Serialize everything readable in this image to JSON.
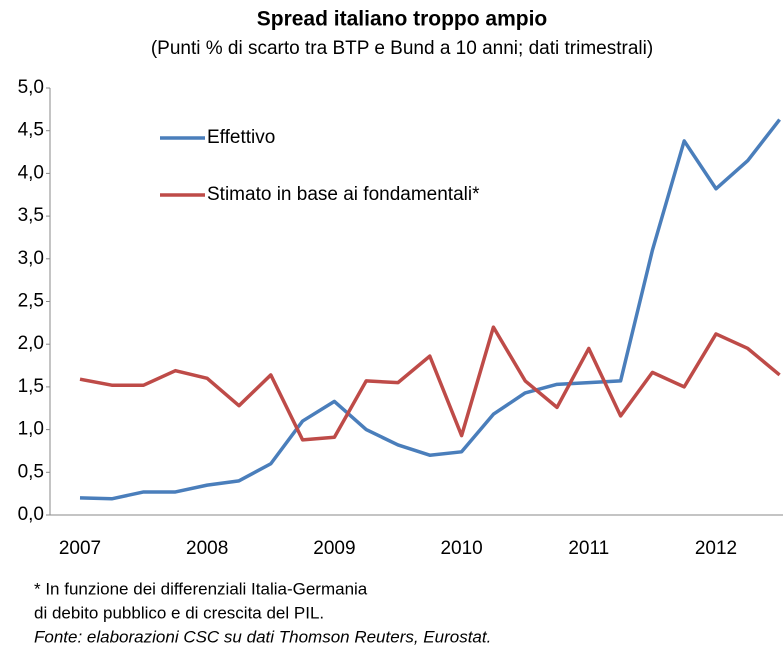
{
  "chart_data": {
    "type": "line",
    "title": "Spread italiano troppo ampio",
    "subtitle": "(Punti % di scarto tra BTP e Bund a 10 anni; dati trimestrali)",
    "categories": [
      "2007",
      null,
      null,
      null,
      "2008",
      null,
      null,
      null,
      "2009",
      null,
      null,
      null,
      "2010",
      null,
      null,
      null,
      "2011",
      null,
      null,
      null,
      "2012",
      null,
      null
    ],
    "series": [
      {
        "name": "Effettivo",
        "color": "#4a7ebb",
        "values": [
          0.2,
          0.19,
          0.27,
          0.27,
          0.35,
          0.4,
          0.6,
          1.1,
          1.33,
          1.0,
          0.82,
          0.7,
          0.74,
          1.18,
          1.43,
          1.53,
          1.55,
          1.57,
          3.1,
          4.38,
          3.82,
          4.15,
          4.63
        ]
      },
      {
        "name": "Stimato in base ai fondamentali*",
        "color": "#be4b48",
        "values": [
          1.59,
          1.52,
          1.52,
          1.69,
          1.6,
          1.28,
          1.64,
          0.88,
          0.91,
          1.57,
          1.55,
          1.86,
          0.93,
          2.2,
          1.57,
          1.26,
          1.95,
          1.16,
          1.67,
          1.5,
          2.12,
          1.95,
          1.64
        ]
      }
    ],
    "ylim": [
      0,
      5
    ],
    "yticks": [
      {
        "value": 0,
        "label": "0,0"
      },
      {
        "value": 0.5,
        "label": "0,5"
      },
      {
        "value": 1,
        "label": "1,0"
      },
      {
        "value": 1.5,
        "label": "1,5"
      },
      {
        "value": 2,
        "label": "2,0"
      },
      {
        "value": 2.5,
        "label": "2,5"
      },
      {
        "value": 3,
        "label": "3,0"
      },
      {
        "value": 3.5,
        "label": "3,5"
      },
      {
        "value": 4,
        "label": "4,0"
      },
      {
        "value": 4.5,
        "label": "4,5"
      },
      {
        "value": 5,
        "label": "5,0"
      }
    ],
    "grid": false,
    "legend": "upper left",
    "notes": [
      "* In funzione dei differenziali Italia-Germania",
      "di debito pubblico e di crescita del PIL."
    ],
    "source": "Fonte: elaborazioni  CSC su dati Thomson Reuters, Eurostat."
  }
}
